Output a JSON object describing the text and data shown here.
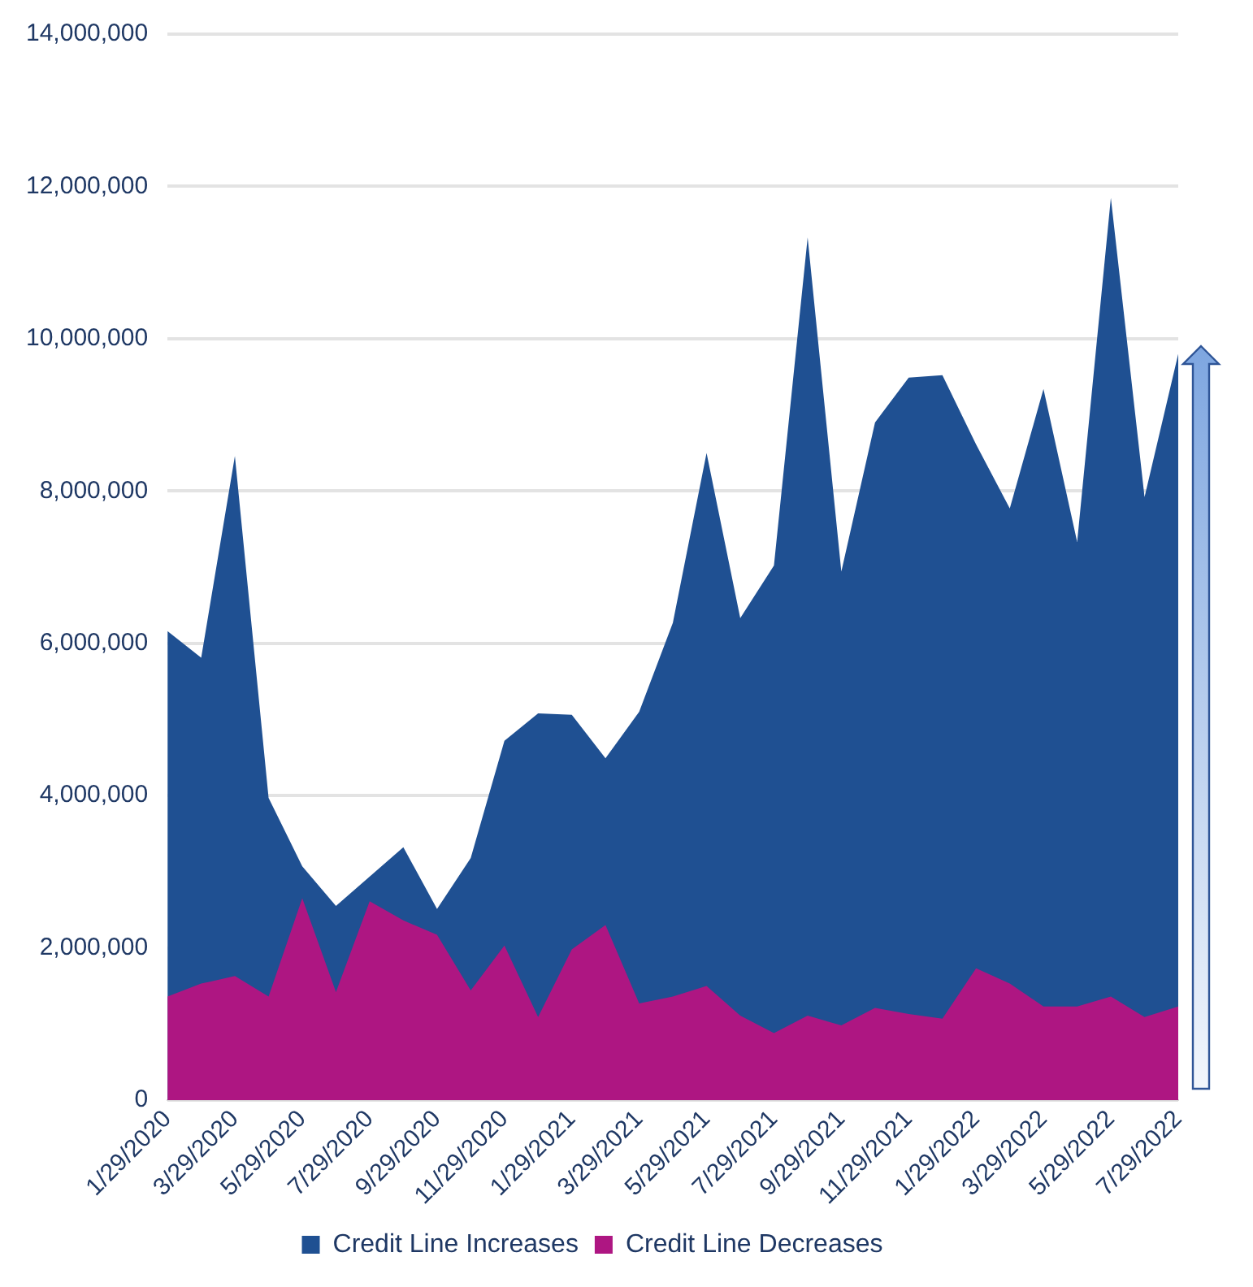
{
  "chart_data": {
    "type": "area",
    "categories": [
      "1/29/2020",
      null,
      "3/29/2020",
      null,
      "5/29/2020",
      null,
      "7/29/2020",
      null,
      "9/29/2020",
      null,
      "11/29/2020",
      null,
      "1/29/2021",
      null,
      "3/29/2021",
      null,
      "5/29/2021",
      null,
      "7/29/2021",
      null,
      "9/29/2021",
      null,
      "11/29/2021",
      null,
      "1/29/2022",
      null,
      "3/29/2022",
      null,
      "5/29/2022",
      null,
      "7/29/2022"
    ],
    "series": [
      {
        "name": "Credit Line Increases",
        "color": "#1f5092",
        "values": [
          6160000,
          5810000,
          8460000,
          3970000,
          3070000,
          2550000,
          null,
          3320000,
          2510000,
          3180000,
          4720000,
          5080000,
          5060000,
          4490000,
          5100000,
          6270000,
          8500000,
          6330000,
          7020000,
          11330000,
          6940000,
          8900000,
          9490000,
          9520000,
          8610000,
          7770000,
          9340000,
          7330000,
          11850000,
          7920000,
          9800000
        ]
      },
      {
        "name": "Credit Line Decreases",
        "color": "#ae1682",
        "values": [
          1360000,
          1530000,
          1630000,
          1360000,
          2650000,
          1420000,
          2610000,
          2360000,
          2170000,
          1440000,
          2030000,
          1090000,
          1980000,
          2300000,
          1270000,
          1360000,
          1500000,
          1110000,
          880000,
          1110000,
          980000,
          1210000,
          1130000,
          1070000,
          1730000,
          1530000,
          1230000,
          1230000,
          1360000,
          1090000,
          1230000
        ]
      }
    ],
    "ylim": [
      0,
      14000000
    ],
    "yticks": [
      {
        "value": 0,
        "label": "0"
      },
      {
        "value": 2000000,
        "label": "2,000,000"
      },
      {
        "value": 4000000,
        "label": "4,000,000"
      },
      {
        "value": 6000000,
        "label": "6,000,000"
      },
      {
        "value": 8000000,
        "label": "8,000,000"
      },
      {
        "value": 10000000,
        "label": "10,000,000"
      },
      {
        "value": 12000000,
        "label": "12,000,000"
      },
      {
        "value": 14000000,
        "label": "14,000,000"
      }
    ],
    "grid": "y",
    "legend": "bottom"
  }
}
